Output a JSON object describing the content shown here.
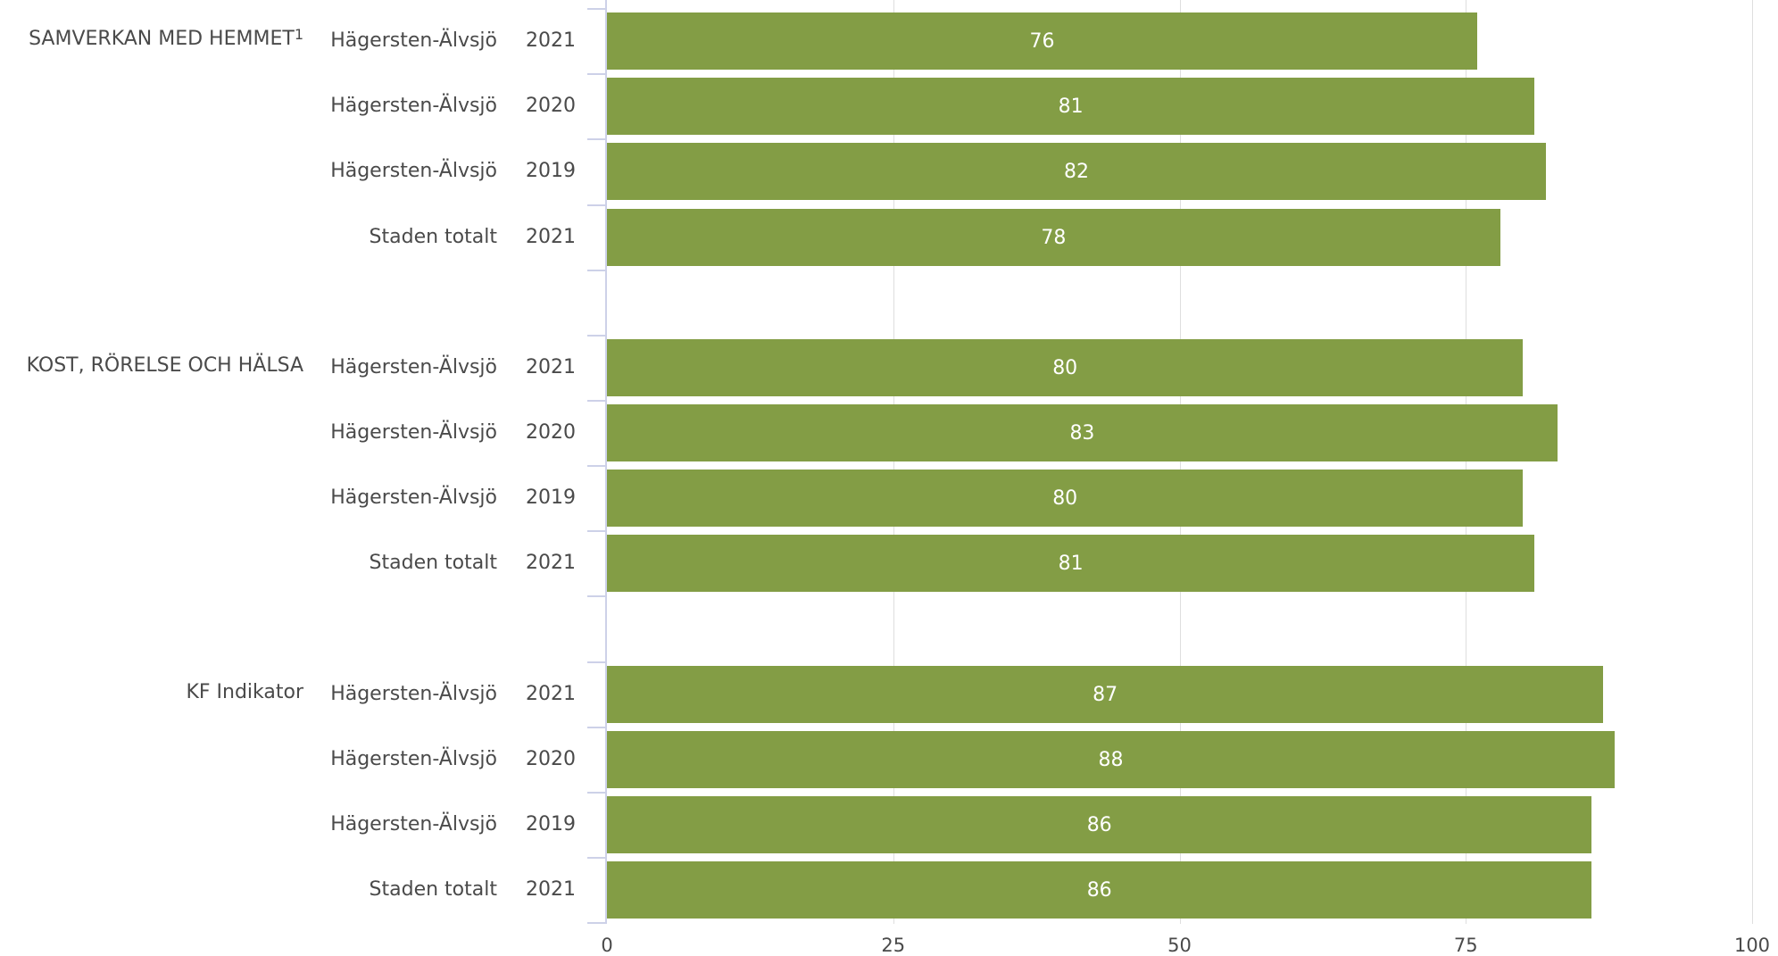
{
  "chart_data": {
    "type": "bar",
    "orientation": "horizontal",
    "xlim": [
      0,
      100
    ],
    "x_ticks": [
      "0",
      "25",
      "50",
      "75",
      "100"
    ],
    "bar_color": "#839d45",
    "value_label_color": "#ffffff",
    "grid": true,
    "groups": [
      {
        "label": "SAMVERKAN MED HEMMET",
        "superscript": "1",
        "rows": [
          {
            "category": "Hägersten-Älvsjö",
            "year": "2021",
            "value": 76,
            "label": "76"
          },
          {
            "category": "Hägersten-Älvsjö",
            "year": "2020",
            "value": 81,
            "label": "81"
          },
          {
            "category": "Hägersten-Älvsjö",
            "year": "2019",
            "value": 82,
            "label": "82"
          },
          {
            "category": "Staden totalt",
            "year": "2021",
            "value": 78,
            "label": "78"
          }
        ]
      },
      {
        "label": "KOST, RÖRELSE OCH HÄLSA",
        "superscript": "",
        "rows": [
          {
            "category": "Hägersten-Älvsjö",
            "year": "2021",
            "value": 80,
            "label": "80"
          },
          {
            "category": "Hägersten-Älvsjö",
            "year": "2020",
            "value": 83,
            "label": "83"
          },
          {
            "category": "Hägersten-Älvsjö",
            "year": "2019",
            "value": 80,
            "label": "80"
          },
          {
            "category": "Staden totalt",
            "year": "2021",
            "value": 81,
            "label": "81"
          }
        ]
      },
      {
        "label": "KF Indikator",
        "superscript": "",
        "rows": [
          {
            "category": "Hägersten-Älvsjö",
            "year": "2021",
            "value": 87,
            "label": "87"
          },
          {
            "category": "Hägersten-Älvsjö",
            "year": "2020",
            "value": 88,
            "label": "88"
          },
          {
            "category": "Hägersten-Älvsjö",
            "year": "2019",
            "value": 86,
            "label": "86"
          },
          {
            "category": "Staden totalt",
            "year": "2021",
            "value": 86,
            "label": "86"
          }
        ]
      }
    ]
  }
}
